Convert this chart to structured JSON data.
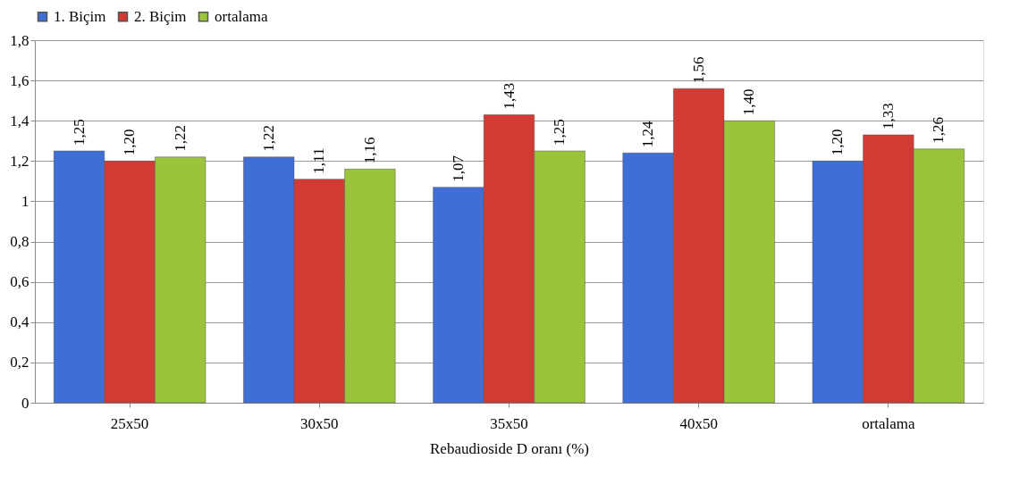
{
  "chart_data": {
    "type": "bar",
    "xlabel": "Rebaudioside D oranı (%)",
    "categories": [
      "25x50",
      "30x50",
      "35x50",
      "40x50",
      "ortalama"
    ],
    "series": [
      {
        "name": "1. Biçim",
        "color": "#3f6fd4",
        "values": [
          1.25,
          1.22,
          1.07,
          1.24,
          1.2
        ],
        "value_labels": [
          "1,25",
          "1,22",
          "1,07",
          "1,24",
          "1,20"
        ]
      },
      {
        "name": "2. Biçim",
        "color": "#d23a34",
        "values": [
          1.2,
          1.11,
          1.43,
          1.56,
          1.33
        ],
        "value_labels": [
          "1,20",
          "1,11",
          "1,43",
          "1,56",
          "1,33"
        ]
      },
      {
        "name": "ortalama",
        "color": "#9bc33c",
        "values": [
          1.22,
          1.16,
          1.25,
          1.4,
          1.26
        ],
        "value_labels": [
          "1,22",
          "1,16",
          "1,25",
          "1,40",
          "1,26"
        ]
      }
    ],
    "ylim": [
      0,
      1.8
    ],
    "yticks": [
      0,
      {
        "value": 0.2,
        "label": "0,2"
      },
      {
        "value": 0.4,
        "label": "0,4"
      },
      {
        "value": 0.6,
        "label": "0,6"
      },
      {
        "value": 0.8,
        "label": "0,8"
      },
      1,
      {
        "value": 1.2,
        "label": "1,2"
      },
      {
        "value": 1.4,
        "label": "1,4"
      },
      {
        "value": 1.6,
        "label": "1,6"
      },
      {
        "value": 1.8,
        "label": "1,8"
      }
    ],
    "grid": "y",
    "legend": "top"
  }
}
